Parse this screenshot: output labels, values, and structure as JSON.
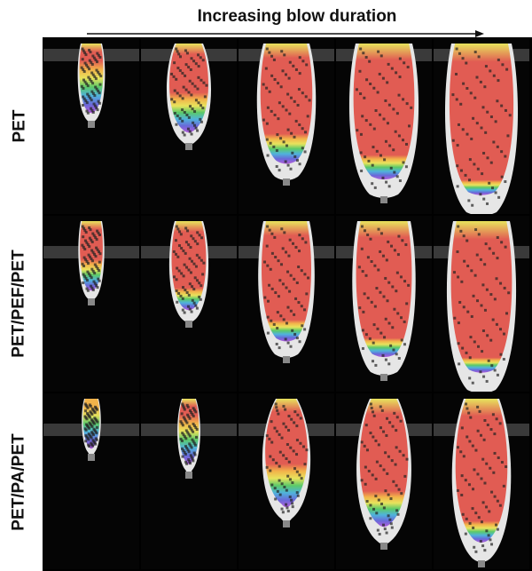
{
  "header": {
    "title": "Increasing blow duration"
  },
  "rows": [
    {
      "label": "PET"
    },
    {
      "label": "PET/PEF/PET"
    },
    {
      "label": "PET/PA/PET"
    }
  ],
  "colors": {
    "background": "#000000",
    "preform": "#e6e6e6",
    "fill_red": "#e03a2e",
    "gradient": [
      "#e03a2e",
      "#f5a623",
      "#e8e23a",
      "#39c24a",
      "#2aa6d9",
      "#4a4ad6",
      "#a63ad6"
    ]
  }
}
